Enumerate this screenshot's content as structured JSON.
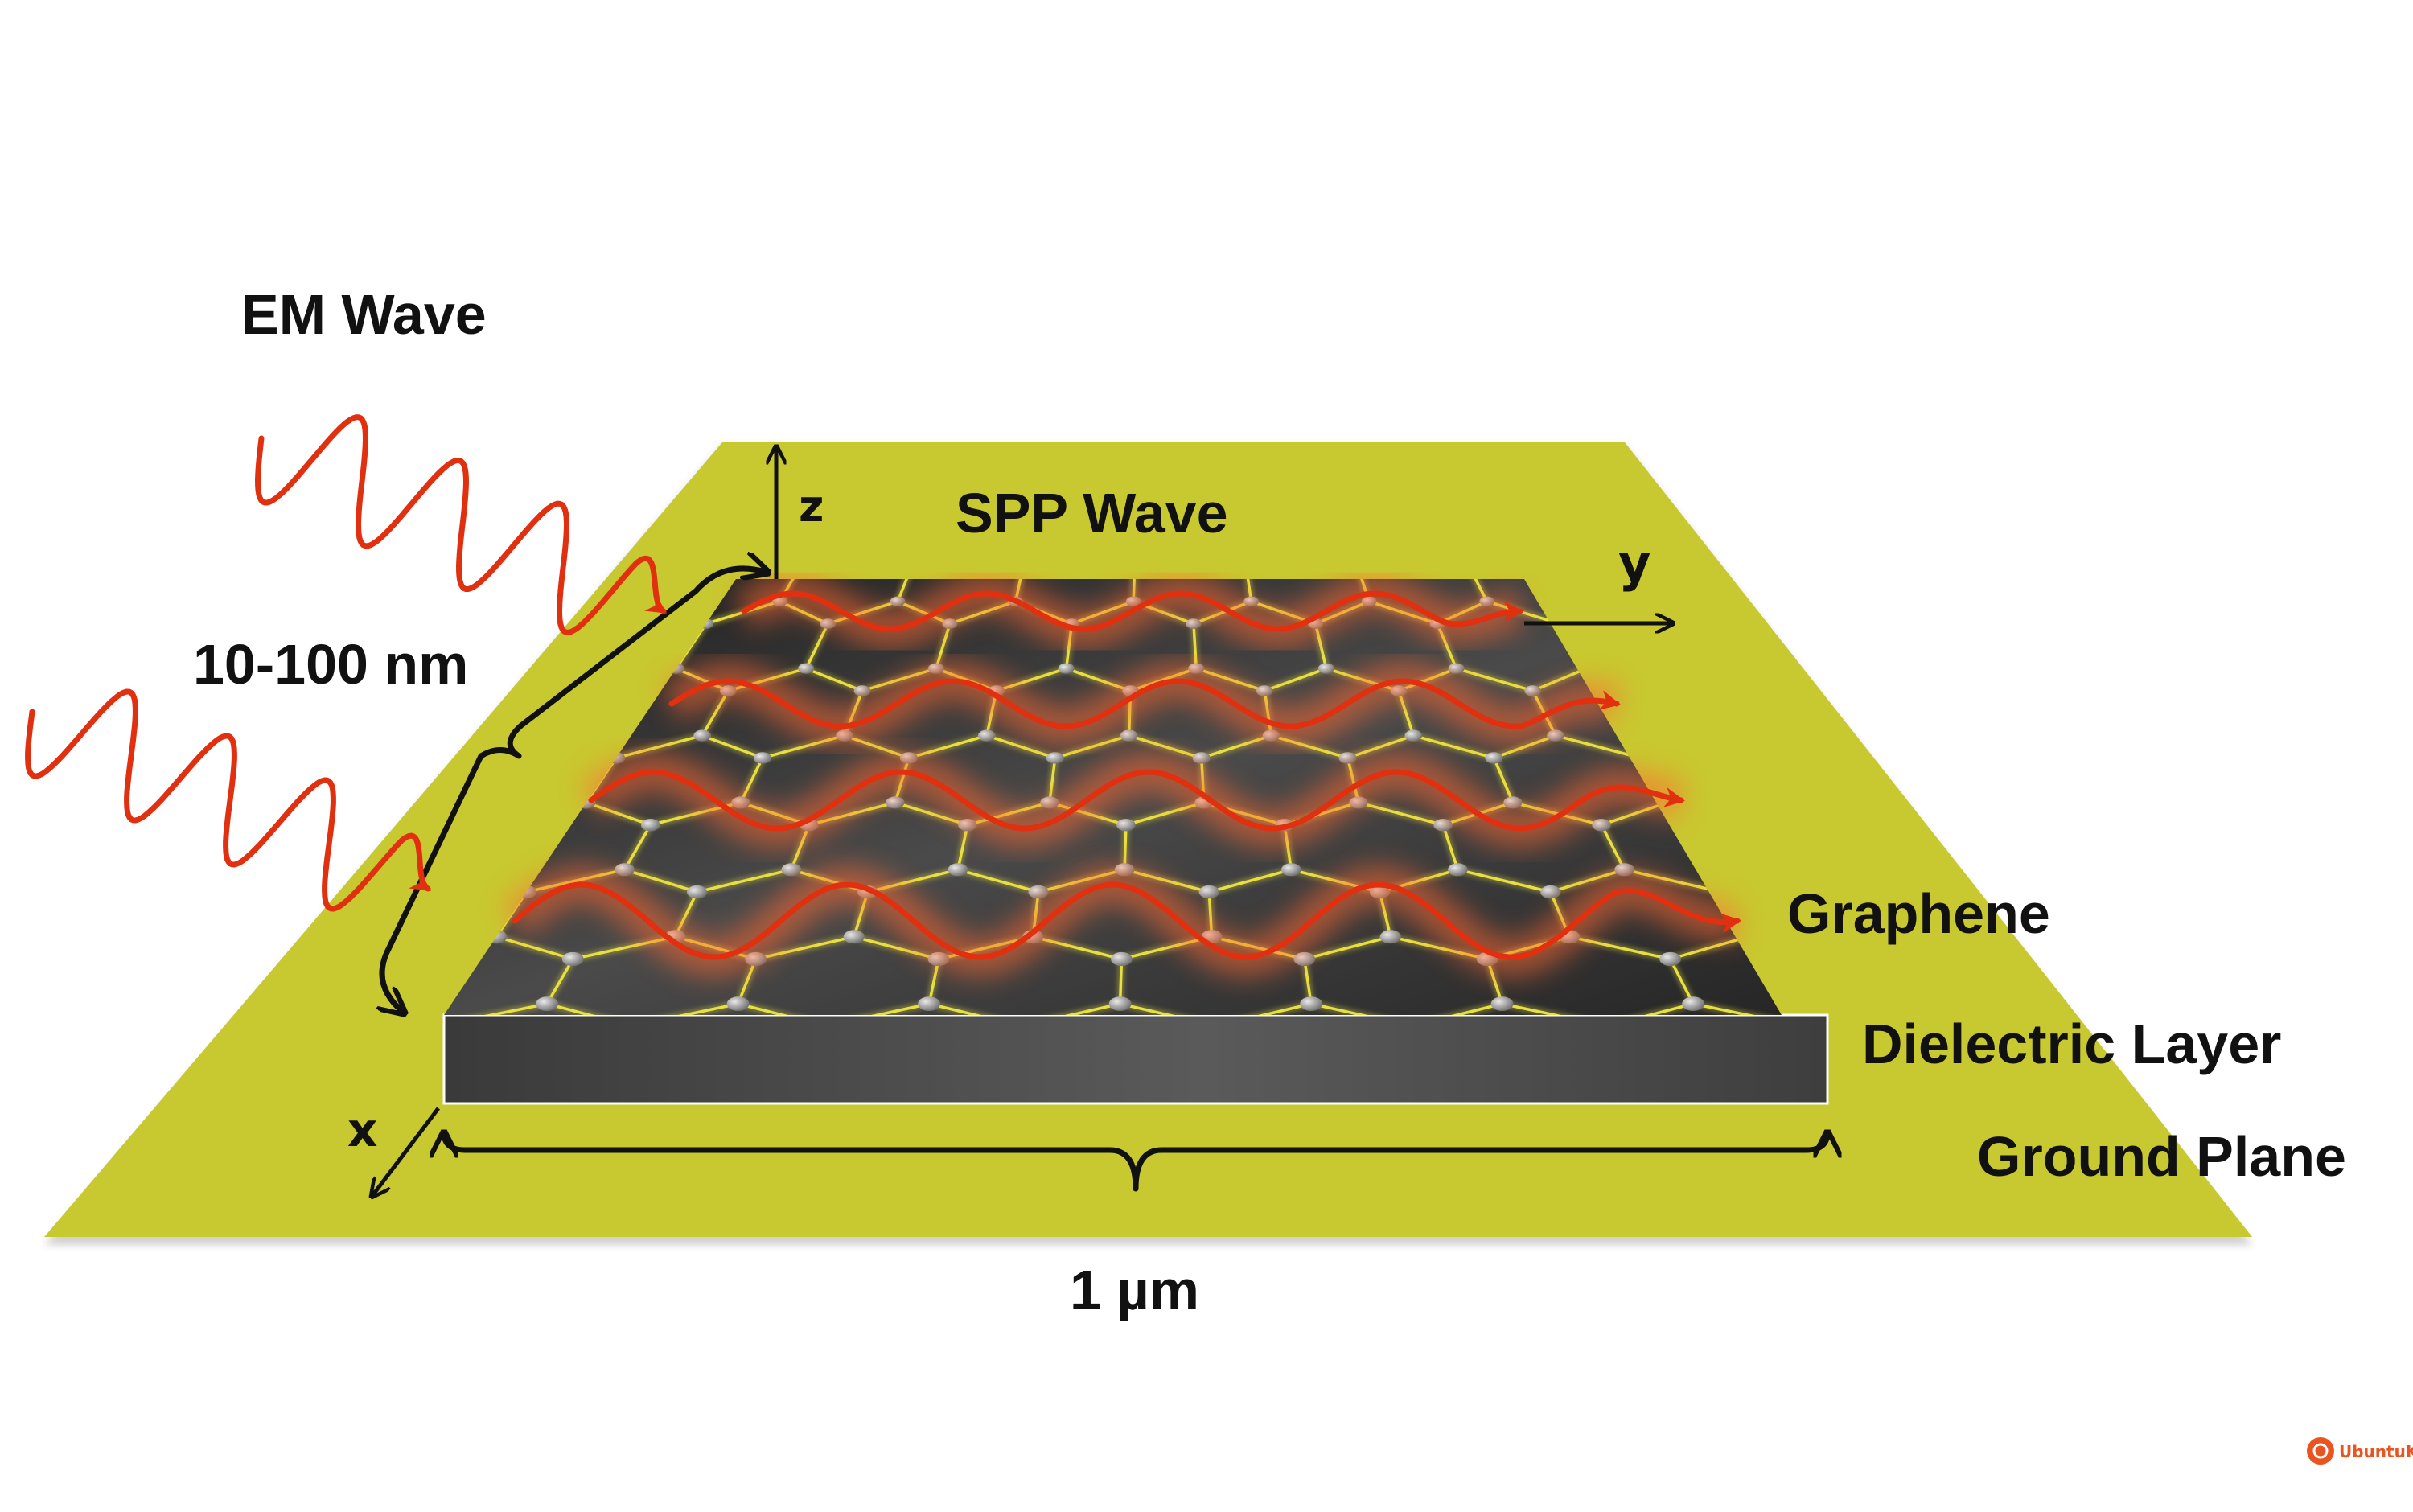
{
  "labels": {
    "em_wave": "EM Wave",
    "spp_wave": "SPP Wave",
    "thickness": "10-100 nm",
    "width": "1 µm",
    "graphene": "Graphene",
    "dielectric": "Dielectric Layer",
    "ground": "Ground Plane"
  },
  "axes": {
    "x": "x",
    "y": "y",
    "z": "z"
  },
  "watermark": {
    "text": "UbuntuKylin",
    "color": "#e95420"
  },
  "colors": {
    "ground_plane": "#c8c830",
    "graphene_sheet": "#2e2e2e",
    "dielectric": "#4a4a4a",
    "lattice_bonds": "#e8e040",
    "wave": "#e03010",
    "glow": "#ff6a30"
  },
  "icons": [
    "wave-arrow-icon",
    "brace-icon",
    "axis-arrow-icon",
    "ubuntu-logo-icon"
  ]
}
